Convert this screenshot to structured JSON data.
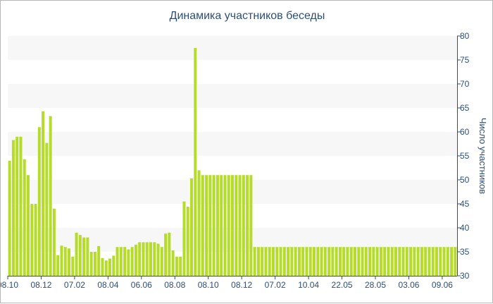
{
  "chart_data": {
    "type": "bar",
    "title": "Динамика участников беседы",
    "ylabel": "Число участников",
    "xlabel": "",
    "ylim": [
      30,
      80
    ],
    "y_ticks": [
      30,
      35,
      40,
      45,
      50,
      55,
      60,
      65,
      70,
      75,
      80
    ],
    "x_tick_labels": [
      {
        "index": 0,
        "label": "08.10"
      },
      {
        "index": 9,
        "label": "08.12"
      },
      {
        "index": 18,
        "label": "07.02"
      },
      {
        "index": 27,
        "label": "08.04"
      },
      {
        "index": 36,
        "label": "06.06"
      },
      {
        "index": 45,
        "label": "08.08"
      },
      {
        "index": 54,
        "label": "08.10"
      },
      {
        "index": 63,
        "label": "08.12"
      },
      {
        "index": 72,
        "label": "07.02"
      },
      {
        "index": 81,
        "label": "10.04"
      },
      {
        "index": 90,
        "label": "22.05"
      },
      {
        "index": 99,
        "label": "28.05"
      },
      {
        "index": 108,
        "label": "03.06"
      },
      {
        "index": 117,
        "label": "09.06"
      }
    ],
    "values": [
      54,
      58.3,
      59,
      59,
      54.3,
      51,
      45,
      45,
      61,
      64.3,
      57.7,
      63.3,
      44,
      34.3,
      36.3,
      36,
      35.7,
      34,
      39,
      38.5,
      38,
      38,
      35,
      35,
      36.2,
      33.7,
      33.2,
      33.6,
      34.2,
      36,
      36,
      36,
      35.5,
      36,
      36.5,
      37,
      37,
      37,
      37,
      37,
      36.7,
      36,
      38.8,
      39,
      35.3,
      34,
      34,
      45.5,
      44.4,
      50.3,
      77.5,
      52,
      51,
      51,
      51,
      51,
      51,
      51,
      51,
      51,
      51,
      51,
      51,
      51,
      51,
      51,
      36,
      36,
      36,
      36,
      36,
      36,
      36,
      36,
      36,
      36,
      36,
      36,
      36,
      36,
      36,
      36,
      36,
      36,
      36,
      36,
      36,
      36,
      36,
      36,
      36,
      36,
      36,
      36,
      36,
      36,
      36,
      36,
      36,
      36,
      36,
      36,
      36,
      36,
      36,
      36,
      36,
      36,
      36,
      36,
      36,
      36,
      36,
      36,
      36,
      36,
      36,
      36,
      36,
      36,
      36
    ],
    "grid": "alternating horizontal bands",
    "bar_color": "#b5dc2b",
    "band_color": "#f7f7f7",
    "text_color": "#2c4f7a"
  }
}
